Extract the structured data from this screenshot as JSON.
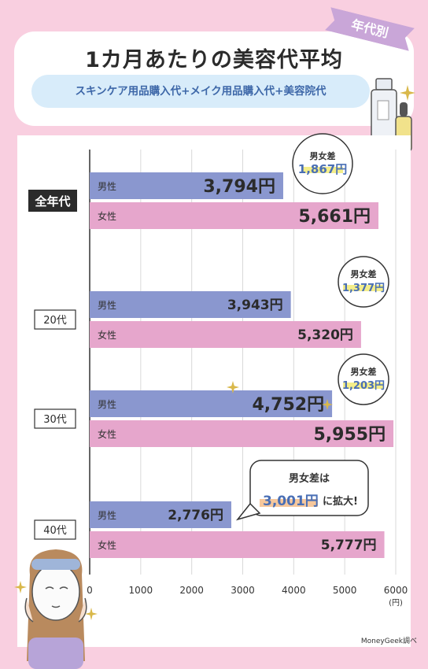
{
  "header": {
    "title": "1カ月あたりの美容代平均",
    "tag": "年代別",
    "subtitle": "スキンケア用品購入代+メイク用品購入代+美容院代"
  },
  "credit": "MoneyGeek調べ",
  "chart_data": {
    "type": "bar",
    "orientation": "horizontal",
    "categories": [
      "全年代",
      "20代",
      "30代",
      "40代"
    ],
    "series": [
      {
        "name": "男性",
        "values": [
          3794,
          3943,
          4752,
          2776
        ],
        "color": "#8a97cf"
      },
      {
        "name": "女性",
        "values": [
          5661,
          5320,
          5955,
          5777
        ],
        "color": "#e6a6cc"
      }
    ],
    "value_labels": {
      "男性": [
        "3,794円",
        "3,943円",
        "4,752円",
        "2,776円"
      ],
      "女性": [
        "5,661円",
        "5,320円",
        "5,955円",
        "5,777円"
      ]
    },
    "differences": [
      {
        "label": "男女差",
        "value": "1,867円"
      },
      {
        "label": "男女差",
        "value": "1,377円"
      },
      {
        "label": "男女差",
        "value": "1,203円"
      },
      {
        "label": "男女差は",
        "value": "3,001円",
        "suffix": "に拡大!"
      }
    ],
    "x_ticks": [
      "0",
      "1000",
      "2000",
      "3000",
      "4000",
      "5000",
      "6000"
    ],
    "x_unit": "(円)",
    "xlim": [
      0,
      6000
    ],
    "grid": true
  }
}
